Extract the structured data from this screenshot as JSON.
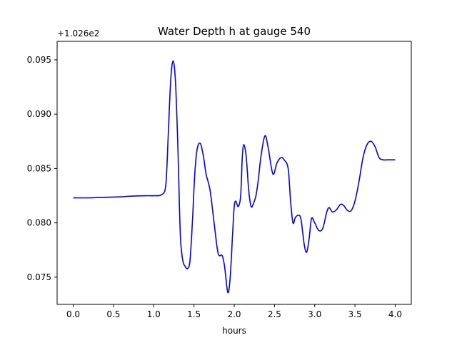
{
  "chart_data": {
    "type": "line",
    "title": "Water Depth h at gauge 540",
    "xlabel": "hours",
    "ylabel": "",
    "offset_label": "+1.026e2",
    "xlim": [
      -0.2,
      4.2
    ],
    "ylim": [
      0.0725,
      0.0967
    ],
    "xticks": [
      0.0,
      0.5,
      1.0,
      1.5,
      2.0,
      2.5,
      3.0,
      3.5,
      4.0
    ],
    "xtick_labels": [
      "0.0",
      "0.5",
      "1.0",
      "1.5",
      "2.0",
      "2.5",
      "3.0",
      "3.5",
      "4.0"
    ],
    "yticks": [
      0.075,
      0.08,
      0.085,
      0.09,
      0.095
    ],
    "ytick_labels": [
      "0.075",
      "0.080",
      "0.085",
      "0.090",
      "0.095"
    ],
    "grid": false,
    "colors": {
      "line": "#0000ff",
      "axes": "#000000",
      "background": "#ffffff"
    },
    "series": [
      {
        "color": "#0000ff",
        "x": [
          0.0,
          0.2,
          0.4,
          0.6,
          0.7,
          0.9,
          1.0,
          1.1,
          1.15,
          1.18,
          1.21,
          1.24,
          1.27,
          1.3,
          1.33,
          1.36,
          1.39,
          1.42,
          1.45,
          1.48,
          1.51,
          1.54,
          1.58,
          1.62,
          1.65,
          1.7,
          1.75,
          1.8,
          1.85,
          1.88,
          1.92,
          1.95,
          1.98,
          2.0,
          2.02,
          2.05,
          2.08,
          2.1,
          2.12,
          2.15,
          2.18,
          2.21,
          2.24,
          2.27,
          2.3,
          2.33,
          2.38,
          2.42,
          2.48,
          2.53,
          2.58,
          2.62,
          2.67,
          2.7,
          2.73,
          2.76,
          2.8,
          2.83,
          2.87,
          2.9,
          2.93,
          2.96,
          3.0,
          3.05,
          3.1,
          3.15,
          3.18,
          3.22,
          3.27,
          3.32,
          3.36,
          3.4,
          3.45,
          3.5,
          3.55,
          3.6,
          3.65,
          3.7,
          3.75,
          3.8,
          3.85,
          3.9,
          3.95,
          4.0
        ],
        "values": [
          0.0823,
          0.0823,
          0.08235,
          0.0824,
          0.08245,
          0.0825,
          0.0825,
          0.0826,
          0.0835,
          0.088,
          0.093,
          0.0949,
          0.093,
          0.087,
          0.079,
          0.0766,
          0.076,
          0.0758,
          0.0765,
          0.08,
          0.0845,
          0.0868,
          0.0873,
          0.086,
          0.0845,
          0.083,
          0.08,
          0.0772,
          0.077,
          0.076,
          0.0736,
          0.075,
          0.079,
          0.0815,
          0.082,
          0.0815,
          0.0825,
          0.086,
          0.0872,
          0.086,
          0.083,
          0.0815,
          0.0818,
          0.0825,
          0.084,
          0.086,
          0.088,
          0.087,
          0.0845,
          0.0855,
          0.086,
          0.0858,
          0.085,
          0.082,
          0.08,
          0.0805,
          0.0807,
          0.0803,
          0.078,
          0.0773,
          0.0785,
          0.0804,
          0.08,
          0.0793,
          0.0795,
          0.081,
          0.0814,
          0.081,
          0.0812,
          0.0817,
          0.0816,
          0.0812,
          0.0811,
          0.082,
          0.0838,
          0.086,
          0.0872,
          0.0875,
          0.087,
          0.086,
          0.0858,
          0.0858,
          0.0858,
          0.0858
        ]
      }
    ]
  }
}
